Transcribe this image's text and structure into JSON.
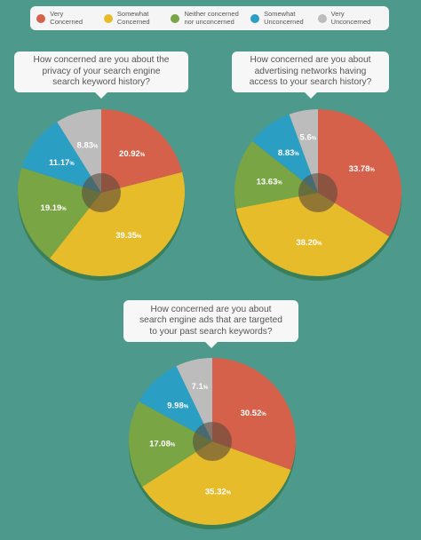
{
  "legend": [
    {
      "label": "Very\nConcerned",
      "color": "#d6614b"
    },
    {
      "label": "Somewhat\nConcerned",
      "color": "#e7bc2b"
    },
    {
      "label": "Neither concerned\nnor unconcerned",
      "color": "#7aa544"
    },
    {
      "label": "Somewhat\nUnconcerned",
      "color": "#2b9ec4"
    },
    {
      "label": "Very\nUnconcerned",
      "color": "#bcbcbc"
    }
  ],
  "center_color": "#5a4a3b",
  "percent_suffix": "%",
  "chart_data": [
    {
      "type": "pie",
      "title": "How concerned are you about the\nprivacy of your search engine\nsearch keyword history?",
      "categories": [
        "Very Concerned",
        "Somewhat Concerned",
        "Neither concerned nor unconcerned",
        "Somewhat Unconcerned",
        "Very Unconcerned"
      ],
      "values": [
        20.92,
        39.35,
        19.19,
        11.17,
        8.83
      ],
      "labels": [
        "20.92",
        "39.35",
        "19.19",
        "11.17",
        "8.83"
      ]
    },
    {
      "type": "pie",
      "title": "How concerned are you about\nadvertising networks having\naccess to your search history?",
      "categories": [
        "Very Concerned",
        "Somewhat Concerned",
        "Neither concerned nor unconcerned",
        "Somewhat Unconcerned",
        "Very Unconcerned"
      ],
      "values": [
        33.78,
        38.2,
        13.63,
        8.83,
        5.6
      ],
      "labels": [
        "33.78",
        "38.20",
        "13.63",
        "8.83",
        "5.6"
      ]
    },
    {
      "type": "pie",
      "title": "How concerned are you about\nsearch engine ads that are targeted\nto your past search keywords?",
      "categories": [
        "Very Concerned",
        "Somewhat Concerned",
        "Neither concerned nor unconcerned",
        "Somewhat Unconcerned",
        "Very Unconcerned"
      ],
      "values": [
        30.52,
        35.32,
        17.08,
        9.98,
        7.1
      ],
      "labels": [
        "30.52",
        "35.32",
        "17.08",
        "9.98",
        "7.1"
      ]
    }
  ]
}
